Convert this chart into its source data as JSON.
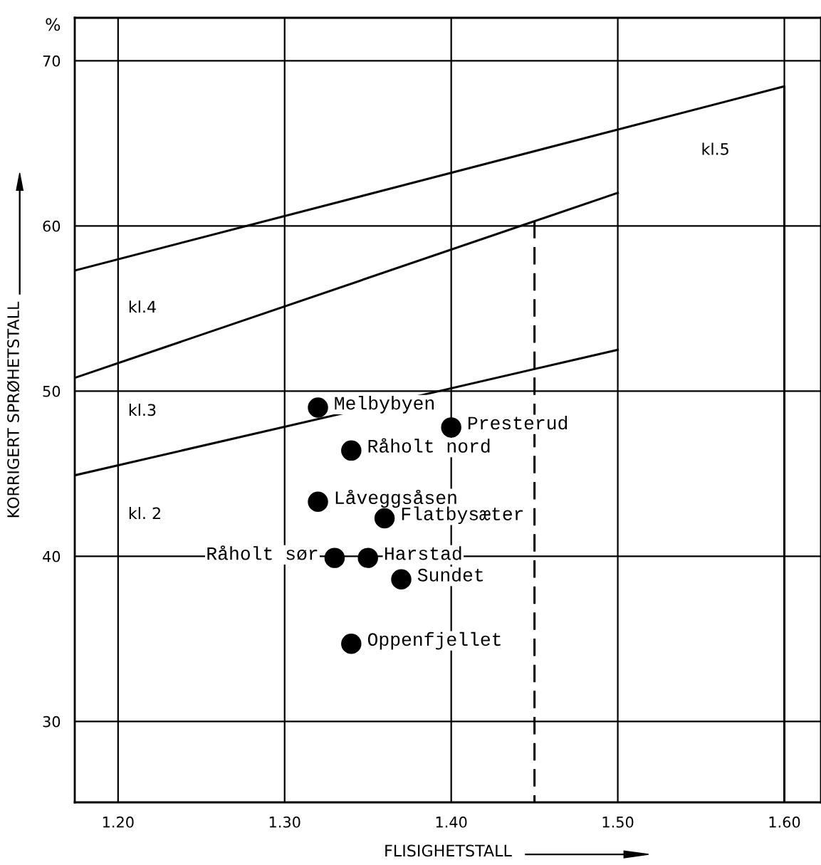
{
  "chart_data": {
    "type": "scatter",
    "xlabel": "FLISIGHETSTALL",
    "ylabel": "KORRIGERT SPRØHETSTALL",
    "xlim": [
      1.174,
      1.622
    ],
    "ylim": [
      25.1,
      72.6
    ],
    "xticks": [
      {
        "value": 1.2,
        "label": "1.20"
      },
      {
        "value": 1.3,
        "label": "1.30"
      },
      {
        "value": 1.4,
        "label": "1.40"
      },
      {
        "value": 1.5,
        "label": "1.50"
      },
      {
        "value": 1.6,
        "label": "1.60"
      }
    ],
    "yticks": [
      30,
      40,
      50,
      60,
      70
    ],
    "grid": true,
    "legend": false,
    "series": [
      {
        "marker": "circle",
        "color": "#000000",
        "x": [
          1.32,
          1.4,
          1.34,
          1.32,
          1.36,
          1.33,
          1.35,
          1.37,
          1.34
        ],
        "values": [
          49.0,
          47.8,
          46.4,
          43.3,
          42.3,
          39.9,
          39.9,
          38.6,
          34.7
        ],
        "value_labels": [
          "Melbybyen",
          "Presterud",
          "Råholt nord",
          "Låveggsåsen",
          "Flatbysæter",
          "Råholt sør",
          "Harstad",
          "Sundet",
          "Oppenfjellet"
        ]
      },
      {
        "type": "line",
        "marker": "none",
        "color": "#000000",
        "line_style": "solid",
        "x": [
          1.174,
          1.6,
          1.6
        ],
        "values": [
          57.3,
          68.45,
          25.1
        ]
      },
      {
        "type": "line",
        "marker": "none",
        "color": "#000000",
        "line_style": "solid",
        "x": [
          1.174,
          1.5
        ],
        "values": [
          50.8,
          62.0
        ]
      },
      {
        "type": "line",
        "marker": "none",
        "color": "#000000",
        "line_style": "solid",
        "x": [
          1.174,
          1.5
        ],
        "values": [
          44.9,
          52.5
        ]
      },
      {
        "type": "line",
        "marker": "none",
        "color": "#000000",
        "line_style": "dashed",
        "x": [
          1.45,
          1.45
        ],
        "values": [
          60.3,
          25.1
        ]
      }
    ],
    "annotations": [
      "%",
      "kl.5",
      "kl.4",
      "kl.3",
      "kl. 2"
    ]
  }
}
